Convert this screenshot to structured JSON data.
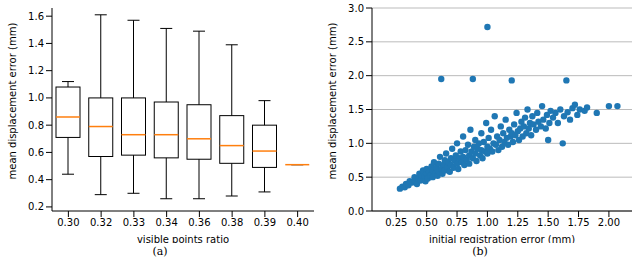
{
  "chart_data": [
    {
      "type": "box",
      "annotations": [
        "(a)"
      ],
      "x_label": "visible points ratio",
      "y_label": "mean displacement error (mm)",
      "categories": [
        "0.30",
        "0.32",
        "0.33",
        "0.34",
        "0.36",
        "0.38",
        "0.39",
        "0.40"
      ],
      "whisker_low": [
        0.44,
        0.29,
        0.3,
        0.26,
        0.26,
        0.28,
        0.31,
        0.51
      ],
      "q1": [
        0.71,
        0.57,
        0.58,
        0.56,
        0.55,
        0.52,
        0.49,
        0.51
      ],
      "median": [
        0.86,
        0.79,
        0.73,
        0.73,
        0.7,
        0.65,
        0.61,
        0.51
      ],
      "q3": [
        1.08,
        1.0,
        1.0,
        0.97,
        0.95,
        0.87,
        0.8,
        0.51
      ],
      "whisker_high": [
        1.12,
        1.61,
        1.57,
        1.51,
        1.49,
        1.39,
        0.98,
        0.51
      ],
      "color": "#000000",
      "median_color": "#ff7f0e",
      "ylim": [
        0.17,
        1.66
      ],
      "yticks": [
        0.2,
        0.4,
        0.6,
        0.8,
        {
          "value": 1.0,
          "label": "1.0"
        },
        1.2,
        1.4,
        1.6
      ],
      "grid": false
    },
    {
      "type": "scatter",
      "annotations": [
        "(b)"
      ],
      "x_label": "initial registration error (mm)",
      "y_label": "mean displacement error (mm)",
      "color": "#1f77b4",
      "marker": "o",
      "grid": "y",
      "xlim": [
        0.05,
        2.19
      ],
      "xticks": [
        0.25,
        {
          "value": 0.5,
          "label": "0.50"
        },
        0.75,
        {
          "value": 1.0,
          "label": "1.00"
        },
        1.25,
        {
          "value": 1.5,
          "label": "1.50"
        },
        1.75,
        {
          "value": 2.0,
          "label": "2.00"
        }
      ],
      "ylim": [
        0,
        3
      ],
      "yticks": [
        {
          "value": 0,
          "label": "0.0"
        },
        0.5,
        {
          "value": 1.0,
          "label": "1.0"
        },
        1.5,
        {
          "value": 2.0,
          "label": "2.0"
        },
        2.5,
        {
          "value": 3.0,
          "label": "3.0"
        }
      ],
      "x": [
        0.28,
        0.3,
        0.32,
        0.33,
        0.35,
        0.36,
        0.38,
        0.4,
        0.4,
        0.42,
        0.43,
        0.44,
        0.45,
        0.46,
        0.47,
        0.48,
        0.49,
        0.5,
        0.5,
        0.51,
        0.52,
        0.53,
        0.54,
        0.55,
        0.55,
        0.56,
        0.57,
        0.58,
        0.59,
        0.6,
        0.6,
        0.61,
        0.62,
        0.62,
        0.63,
        0.64,
        0.65,
        0.65,
        0.66,
        0.67,
        0.68,
        0.69,
        0.7,
        0.7,
        0.71,
        0.72,
        0.73,
        0.74,
        0.75,
        0.75,
        0.76,
        0.77,
        0.78,
        0.79,
        0.8,
        0.8,
        0.81,
        0.82,
        0.83,
        0.84,
        0.85,
        0.85,
        0.86,
        0.87,
        0.88,
        0.88,
        0.89,
        0.9,
        0.9,
        0.91,
        0.92,
        0.93,
        0.94,
        0.95,
        0.95,
        0.96,
        0.97,
        0.98,
        0.99,
        1.0,
        1.0,
        1.0,
        1.01,
        1.02,
        1.03,
        1.04,
        1.05,
        1.06,
        1.07,
        1.08,
        1.09,
        1.1,
        1.11,
        1.12,
        1.13,
        1.14,
        1.15,
        1.16,
        1.17,
        1.18,
        1.19,
        1.2,
        1.2,
        1.21,
        1.22,
        1.23,
        1.24,
        1.25,
        1.26,
        1.27,
        1.28,
        1.29,
        1.3,
        1.31,
        1.32,
        1.33,
        1.34,
        1.35,
        1.36,
        1.37,
        1.38,
        1.4,
        1.41,
        1.42,
        1.44,
        1.45,
        1.46,
        1.48,
        1.49,
        1.5,
        1.51,
        1.52,
        1.54,
        1.56,
        1.58,
        1.6,
        1.62,
        1.63,
        1.65,
        1.66,
        1.68,
        1.7,
        1.72,
        1.74,
        1.76,
        1.8,
        1.82,
        1.9,
        2.0,
        2.07
      ],
      "values": [
        0.33,
        0.36,
        0.35,
        0.4,
        0.38,
        0.44,
        0.42,
        0.45,
        0.5,
        0.4,
        0.48,
        0.55,
        0.45,
        0.52,
        0.6,
        0.5,
        0.44,
        0.55,
        0.62,
        0.48,
        0.58,
        0.52,
        0.66,
        0.5,
        0.6,
        0.72,
        0.55,
        0.64,
        0.52,
        0.58,
        0.7,
        0.8,
        0.62,
        1.95,
        0.55,
        0.68,
        0.75,
        0.6,
        0.85,
        0.65,
        0.72,
        0.58,
        0.78,
        0.68,
        0.92,
        0.64,
        0.75,
        0.82,
        0.7,
        1.0,
        0.62,
        0.78,
        0.88,
        0.72,
        0.8,
        1.1,
        0.68,
        0.9,
        0.76,
        0.98,
        0.82,
        0.7,
        1.2,
        0.88,
        0.78,
        1.95,
        0.95,
        0.85,
        1.05,
        0.74,
        0.92,
        1.0,
        0.82,
        1.15,
        0.9,
        0.78,
        1.02,
        0.88,
        1.3,
        0.95,
        2.72,
        0.85,
        1.08,
        0.92,
        1.2,
        0.88,
        1.0,
        1.4,
        0.98,
        1.1,
        0.9,
        1.05,
        1.25,
        0.95,
        1.15,
        1.02,
        1.35,
        1.08,
        0.98,
        1.2,
        1.1,
        1.93,
        1.15,
        1.02,
        1.28,
        1.12,
        1.45,
        1.18,
        1.05,
        1.22,
        1.32,
        1.1,
        1.25,
        1.38,
        1.15,
        1.5,
        1.22,
        1.3,
        1.12,
        1.4,
        1.28,
        1.2,
        1.45,
        1.32,
        1.25,
        1.55,
        1.35,
        1.22,
        1.42,
        1.05,
        1.3,
        1.48,
        1.38,
        1.45,
        1.3,
        1.5,
        1.0,
        1.4,
        1.93,
        1.46,
        1.35,
        1.52,
        1.57,
        1.42,
        1.5,
        1.48,
        1.53,
        1.45,
        1.55,
        1.55
      ]
    }
  ]
}
